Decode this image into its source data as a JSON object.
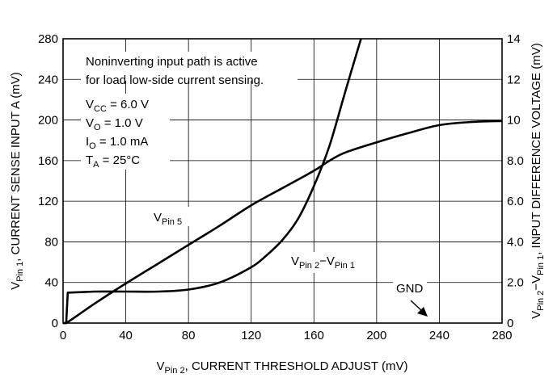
{
  "chart_data": {
    "type": "line",
    "xlabel": "V",
    "xlabel_sub": "Pin 2",
    "xlabel_rest": ", CURRENT THRESHOLD ADJUST (mV)",
    "ylabel_left": "V",
    "ylabel_left_sub": "Pin 1",
    "ylabel_left_rest": ", CURRENT SENSE INPUT A (mV)",
    "ylabel_right": "V",
    "ylabel_right_sub1": "Pin 2",
    "ylabel_right_mid": "−V",
    "ylabel_right_sub2": "Pin 1",
    "ylabel_right_rest": ", INPUT DIFFERENCE VOLTAGE (mV)",
    "xlim": [
      0,
      280
    ],
    "ylim_left": [
      0,
      280
    ],
    "ylim_right": [
      0,
      14
    ],
    "x_ticks": [
      "0",
      "40",
      "80",
      "120",
      "160",
      "200",
      "240",
      "280"
    ],
    "y_left_ticks": [
      "0",
      "40",
      "80",
      "120",
      "160",
      "200",
      "240",
      "280"
    ],
    "y_right_ticks": [
      "0",
      "2.0",
      "4.0",
      "6.0",
      "8.0",
      "10",
      "12",
      "14"
    ],
    "grid": true,
    "series": [
      {
        "name": "V",
        "sub": "Pin 5",
        "axis": "left",
        "points": [
          [
            0,
            0
          ],
          [
            2,
            0
          ],
          [
            20,
            19
          ],
          [
            40,
            39
          ],
          [
            60,
            58
          ],
          [
            80,
            77
          ],
          [
            100,
            96
          ],
          [
            120,
            116
          ],
          [
            140,
            133
          ],
          [
            160,
            150
          ],
          [
            170,
            160
          ],
          [
            180,
            168
          ],
          [
            200,
            178
          ],
          [
            220,
            187
          ],
          [
            240,
            195
          ],
          [
            260,
            198
          ],
          [
            280,
            199
          ]
        ]
      },
      {
        "name": "V",
        "sub": "Pin 2",
        "mid": "−V",
        "sub2": "Pin 1",
        "axis": "left",
        "points": [
          [
            0,
            0
          ],
          [
            2,
            0
          ],
          [
            3,
            30
          ],
          [
            20,
            31
          ],
          [
            40,
            31
          ],
          [
            60,
            31
          ],
          [
            80,
            33
          ],
          [
            100,
            40
          ],
          [
            120,
            55
          ],
          [
            130,
            67
          ],
          [
            140,
            82
          ],
          [
            150,
            103
          ],
          [
            160,
            135
          ],
          [
            170,
            175
          ],
          [
            180,
            228
          ],
          [
            190,
            280
          ]
        ]
      }
    ],
    "annotations": {
      "note_line1": "Noninverting input path is active",
      "note_line2": "for load low-side current sensing.",
      "cond1_main": "V",
      "cond1_sub": "CC",
      "cond1_val": " = 6.0 V",
      "cond2_main": "V",
      "cond2_sub": "O",
      "cond2_val": " = 1.0 V",
      "cond3_main": "I",
      "cond3_sub": "O",
      "cond3_val": " = 1.0 mA",
      "cond4_main": "T",
      "cond4_sub": "A",
      "cond4_val": " = 25°C",
      "gnd_label": "GND"
    }
  }
}
